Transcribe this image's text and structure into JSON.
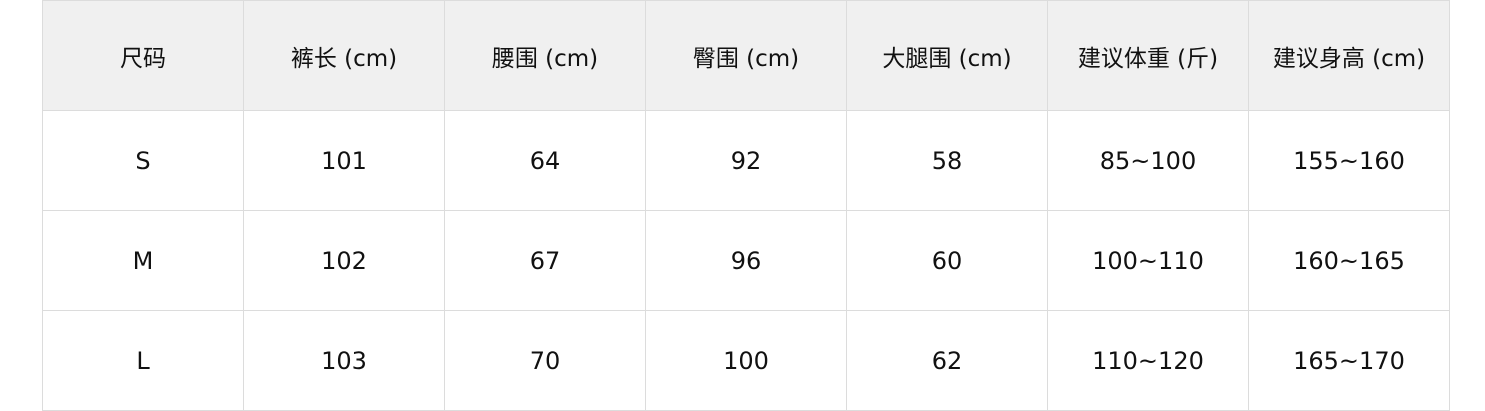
{
  "size_table": {
    "headers": [
      "尺码",
      "裤长 (cm)",
      "腰围 (cm)",
      "臀围 (cm)",
      "大腿围 (cm)",
      "建议体重 (斤)",
      "建议身高 (cm)"
    ],
    "rows": [
      [
        "S",
        "101",
        "64",
        "92",
        "58",
        "85~100",
        "155~160"
      ],
      [
        "M",
        "102",
        "67",
        "96",
        "60",
        "100~110",
        "160~165"
      ],
      [
        "L",
        "103",
        "70",
        "100",
        "62",
        "110~120",
        "165~170"
      ]
    ]
  }
}
